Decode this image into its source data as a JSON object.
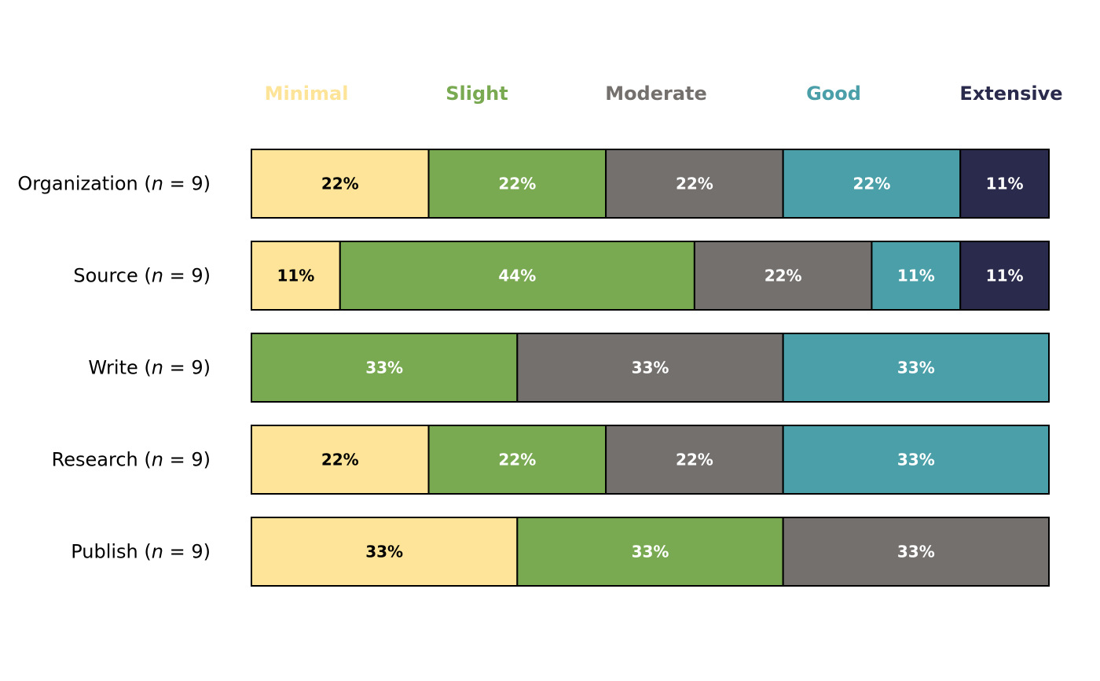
{
  "chart_data": {
    "type": "bar",
    "orientation": "horizontal",
    "stacked": true,
    "title": "",
    "xlabel": "",
    "ylabel": "",
    "xlim": [
      0,
      100
    ],
    "grid": false,
    "legend_placement": "top",
    "legend": [
      {
        "name": "Minimal",
        "color": "#FDE498"
      },
      {
        "name": "Slight",
        "color": "#79A951"
      },
      {
        "name": "Moderate",
        "color": "#74706E"
      },
      {
        "name": "Good",
        "color": "#4A9FA8"
      },
      {
        "name": "Extensive",
        "color": "#2A2A4C"
      }
    ],
    "rows": [
      {
        "label": "Organization",
        "n_prefix": "(",
        "n_var": "n",
        "n_suffix": " = 9)",
        "segments": [
          {
            "category": "Minimal",
            "value": 22,
            "label": "22%"
          },
          {
            "category": "Slight",
            "value": 22,
            "label": "22%"
          },
          {
            "category": "Moderate",
            "value": 22,
            "label": "22%"
          },
          {
            "category": "Good",
            "value": 22,
            "label": "22%"
          },
          {
            "category": "Extensive",
            "value": 11,
            "label": "11%"
          }
        ]
      },
      {
        "label": "Source",
        "n_prefix": "(",
        "n_var": "n",
        "n_suffix": " = 9)",
        "segments": [
          {
            "category": "Minimal",
            "value": 11,
            "label": "11%"
          },
          {
            "category": "Slight",
            "value": 44,
            "label": "44%"
          },
          {
            "category": "Moderate",
            "value": 22,
            "label": "22%"
          },
          {
            "category": "Good",
            "value": 11,
            "label": "11%"
          },
          {
            "category": "Extensive",
            "value": 11,
            "label": "11%"
          }
        ]
      },
      {
        "label": "Write",
        "n_prefix": "(",
        "n_var": "n",
        "n_suffix": " = 9)",
        "segments": [
          {
            "category": "Slight",
            "value": 33,
            "label": "33%"
          },
          {
            "category": "Moderate",
            "value": 33,
            "label": "33%"
          },
          {
            "category": "Good",
            "value": 33,
            "label": "33%"
          }
        ]
      },
      {
        "label": "Research",
        "n_prefix": "(",
        "n_var": "n",
        "n_suffix": " = 9)",
        "segments": [
          {
            "category": "Minimal",
            "value": 22,
            "label": "22%"
          },
          {
            "category": "Slight",
            "value": 22,
            "label": "22%"
          },
          {
            "category": "Moderate",
            "value": 22,
            "label": "22%"
          },
          {
            "category": "Good",
            "value": 33,
            "label": "33%"
          }
        ]
      },
      {
        "label": "Publish",
        "n_prefix": "(",
        "n_var": "n",
        "n_suffix": " = 9)",
        "segments": [
          {
            "category": "Minimal",
            "value": 33,
            "label": "33%"
          },
          {
            "category": "Slight",
            "value": 33,
            "label": "33%"
          },
          {
            "category": "Moderate",
            "value": 33,
            "label": "33%"
          }
        ]
      }
    ],
    "label_text_colors": {
      "Minimal": "#000000",
      "Slight": "#ffffff",
      "Moderate": "#ffffff",
      "Good": "#ffffff",
      "Extensive": "#ffffff"
    }
  }
}
